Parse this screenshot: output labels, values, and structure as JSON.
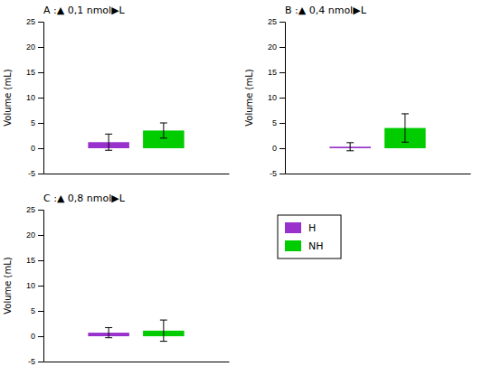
{
  "chart_data": [
    {
      "type": "bar",
      "title": "A :▲ 0,1 nmol▶L",
      "ylabel": "Volume (mL)",
      "categories": [
        null
      ],
      "series": [
        {
          "name": "H",
          "color": "#9932CC",
          "values": [
            1.2
          ],
          "errors": [
            1.6
          ]
        },
        {
          "name": "NH",
          "color": "#00CC00",
          "values": [
            3.5
          ],
          "errors": [
            1.5
          ]
        }
      ],
      "ylim": [
        -5,
        25
      ],
      "yticks": [
        -5,
        0,
        5,
        10,
        15,
        20,
        25
      ],
      "tick_labels": "y",
      "legend": "lower right"
    },
    {
      "type": "bar",
      "title": "B :▲ 0,4 nmol▶L",
      "ylabel": "Volume (mL)",
      "categories": [
        null
      ],
      "series": [
        {
          "name": "H",
          "color": "#9932CC",
          "values": [
            0.3
          ],
          "errors": [
            0.8
          ]
        },
        {
          "name": "NH",
          "color": "#00CC00",
          "values": [
            4.0
          ],
          "errors": [
            2.8
          ]
        }
      ],
      "ylim": [
        -5,
        25
      ],
      "yticks": [
        -5,
        0,
        5,
        10,
        15,
        20,
        25
      ],
      "tick_labels": "y"
    },
    {
      "type": "bar",
      "title": "C :▲ 0,8 nmol▶L",
      "ylabel": "Volume (mL)",
      "categories": [
        null
      ],
      "series": [
        {
          "name": "H",
          "color": "#9932CC",
          "values": [
            0.7
          ],
          "errors": [
            1.0
          ]
        },
        {
          "name": "NH",
          "color": "#00CC00",
          "values": [
            1.1
          ],
          "errors": [
            2.1
          ]
        }
      ],
      "ylim": [
        -5,
        25
      ],
      "yticks": [
        -5,
        0,
        5,
        10,
        15,
        20,
        25
      ],
      "tick_labels": "y"
    }
  ]
}
